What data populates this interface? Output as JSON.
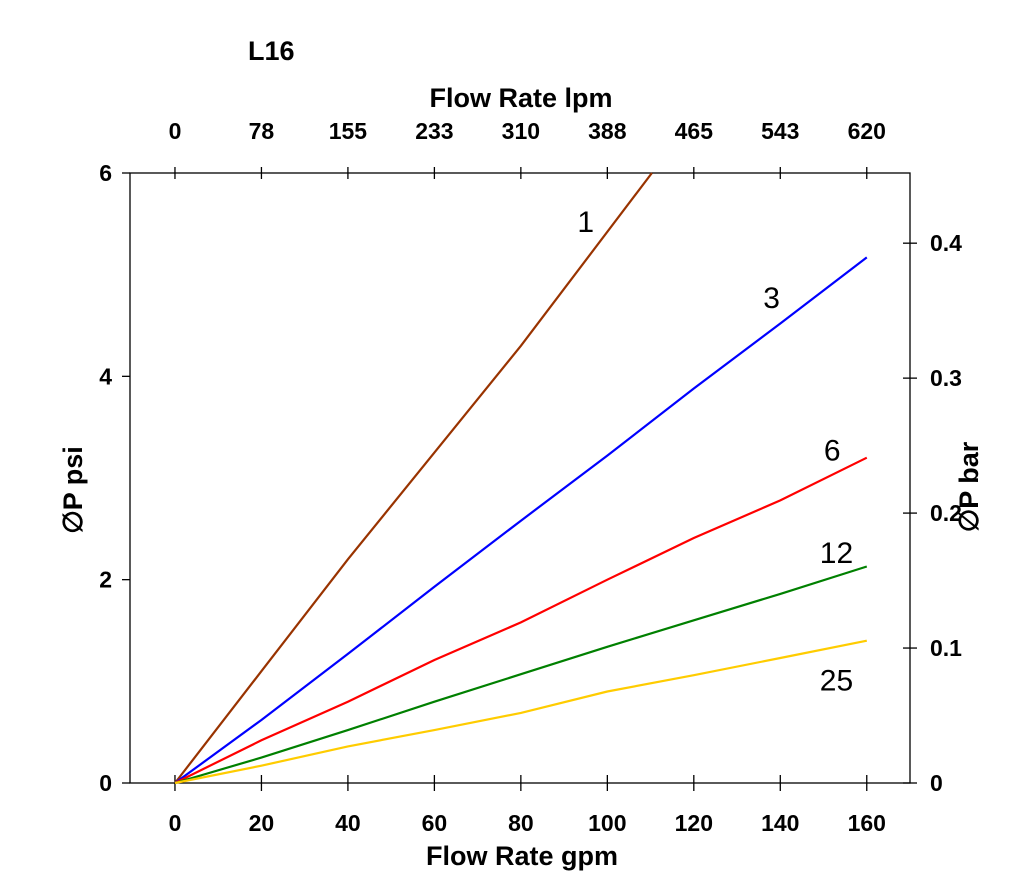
{
  "chart_data": {
    "type": "line",
    "title": "L16",
    "xlabel": "Flow Rate gpm",
    "x2label": "Flow Rate lpm",
    "ylabel": "∅P psi",
    "y2label": "∅P bar",
    "xlim": [
      -10.4,
      170
    ],
    "ylim": [
      0,
      6
    ],
    "y2lim": [
      0,
      0.452
    ],
    "x_ticks": [
      0,
      20,
      40,
      60,
      80,
      100,
      120,
      140,
      160
    ],
    "x2_tick_labels": [
      "0",
      "78",
      "155",
      "233",
      "310",
      "388",
      "465",
      "543",
      "620"
    ],
    "y_ticks": [
      0,
      2,
      4,
      6
    ],
    "y2_ticks": [
      0,
      0.1,
      0.2,
      0.3,
      0.4
    ],
    "grid": false,
    "series": [
      {
        "name": "1",
        "color": "#993300",
        "x": [
          0,
          20,
          40,
          60,
          80,
          110.3
        ],
        "y": [
          0,
          1.1,
          2.2,
          3.25,
          4.3,
          6.0
        ],
        "label_at": [
          95,
          5.52
        ]
      },
      {
        "name": "3",
        "color": "#0000ff",
        "x": [
          0,
          20,
          40,
          60,
          80,
          100,
          120,
          140,
          160
        ],
        "y": [
          0,
          0.62,
          1.27,
          1.93,
          2.58,
          3.22,
          3.88,
          4.52,
          5.17
        ],
        "label_at": [
          138,
          4.77
        ]
      },
      {
        "name": "6",
        "color": "#ff0000",
        "x": [
          0,
          20,
          40,
          60,
          80,
          100,
          120,
          140,
          160
        ],
        "y": [
          0,
          0.42,
          0.8,
          1.21,
          1.58,
          2.0,
          2.41,
          2.78,
          3.2
        ],
        "label_at": [
          152,
          3.27
        ]
      },
      {
        "name": "12",
        "color": "#008000",
        "x": [
          0,
          20,
          40,
          60,
          80,
          100,
          120,
          140,
          160
        ],
        "y": [
          0,
          0.25,
          0.52,
          0.8,
          1.07,
          1.34,
          1.6,
          1.86,
          2.13
        ],
        "label_at": [
          153,
          2.26
        ]
      },
      {
        "name": "25",
        "color": "#ffcc00",
        "x": [
          0,
          20,
          40,
          60,
          80,
          100,
          120,
          140,
          160
        ],
        "y": [
          0,
          0.17,
          0.36,
          0.52,
          0.69,
          0.9,
          1.06,
          1.23,
          1.4
        ],
        "label_at": [
          153,
          1.01
        ]
      }
    ]
  }
}
